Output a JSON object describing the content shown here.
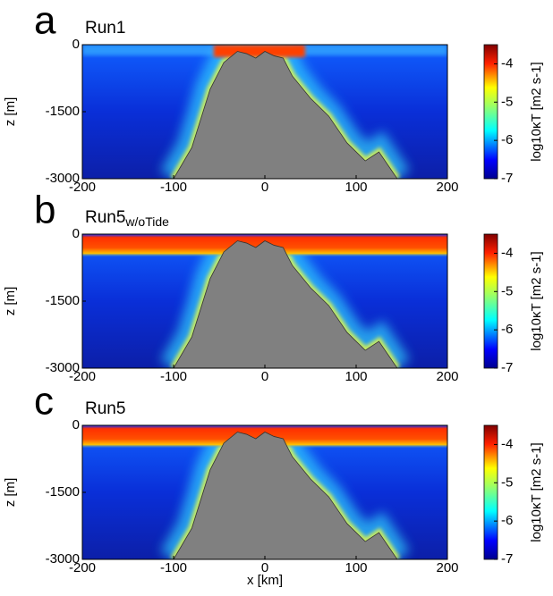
{
  "chart_data": [
    {
      "type": "heatmap",
      "panel": "a",
      "title": "Run1",
      "ylabel": "z [m]",
      "xlim": [
        -200,
        200
      ],
      "xticks": [
        -200,
        -100,
        0,
        100,
        200
      ],
      "ylim": [
        -3000,
        0
      ],
      "yticks": [
        -3000,
        -1500,
        0
      ],
      "clim": [
        -7,
        -3.5
      ],
      "cticks": [
        -7,
        -6,
        -5,
        -4
      ],
      "colorbar_label": "log10κT [m2 s-1]"
    },
    {
      "type": "heatmap",
      "panel": "b",
      "title": "Run5",
      "title_sub": "w/oTide",
      "ylabel": "z [m]",
      "xlim": [
        -200,
        200
      ],
      "xticks": [
        -200,
        -100,
        0,
        100,
        200
      ],
      "ylim": [
        -3000,
        0
      ],
      "yticks": [
        -3000,
        -1500,
        0
      ],
      "clim": [
        -7,
        -3.5
      ],
      "cticks": [
        -7,
        -6,
        -5,
        -4
      ],
      "colorbar_label": "log10κT [m2 s-1]"
    },
    {
      "type": "heatmap",
      "panel": "c",
      "title": "Run5",
      "ylabel": "z [m]",
      "xlabel": "x [km]",
      "xlim": [
        -200,
        200
      ],
      "xticks": [
        -200,
        -100,
        0,
        100,
        200
      ],
      "ylim": [
        -3000,
        0
      ],
      "yticks": [
        -3000,
        -1500,
        0
      ],
      "clim": [
        -7,
        -3.5
      ],
      "cticks": [
        -7,
        -6,
        -5,
        -4
      ],
      "colorbar_label": "log10κT [m2 s-1]"
    }
  ]
}
